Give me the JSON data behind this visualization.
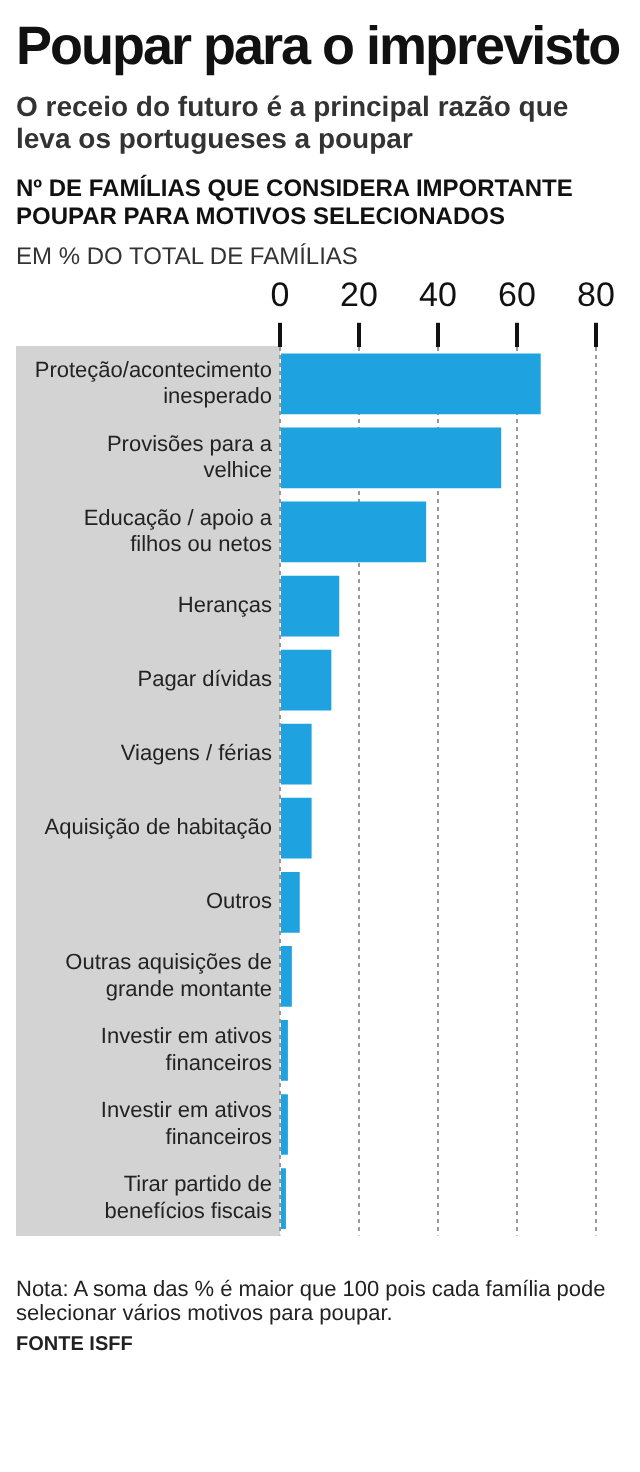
{
  "chart_data": {
    "type": "bar",
    "orientation": "horizontal",
    "title": "Poupar para o imprevisto",
    "subtitle": "O receio do futuro é a principal razão que leva os portugueses a poupar",
    "xlabel": "EM % DO TOTAL DE FAMÍLIAS",
    "annotations": [
      "Nº DE FAMÍLIAS QUE CONSIDERA IMPORTANTE POUPAR PARA MOTIVOS SELECIONADOS",
      "Nota: A soma das % é maior que 100 pois cada família pode selecionar vários motivos para poupar.",
      "FONTE ISFF"
    ],
    "categories": [
      "Proteção/acontecimento inesperado",
      "Provisões para a velhice",
      "Educação / apoio a filhos ou netos",
      "Heranças",
      "Pagar dívidas",
      "Viagens / férias",
      "Aquisição de habitação",
      "Outros",
      "Outras aquisições de grande montante",
      "Investir em ativos financeiros",
      "Investir em ativos financeiros",
      "Tirar partido de benefícios fiscais"
    ],
    "values": [
      66,
      56,
      37,
      15,
      13,
      8,
      8,
      5,
      3,
      2,
      2,
      1.5
    ],
    "color": "#1fa3e0",
    "xlim": [
      0,
      80
    ],
    "xticks": [
      0,
      20,
      40,
      60,
      80
    ],
    "grid": "x",
    "legend": false
  }
}
